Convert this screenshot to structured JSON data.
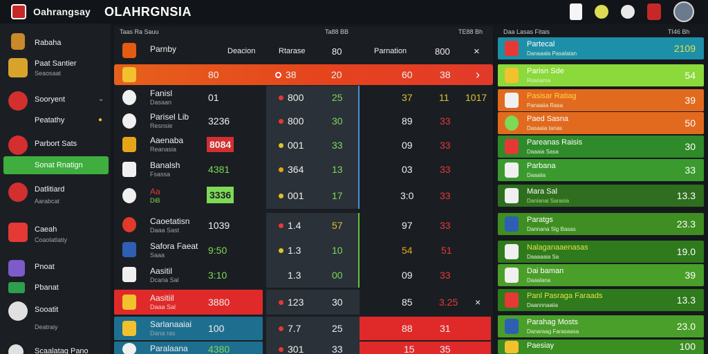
{
  "topbar": {
    "brand_name": "Oahrangsay",
    "app_title": "OLAHRGNSIA"
  },
  "sidebar": {
    "items": [
      {
        "label": "Rabaha",
        "sub": ""
      },
      {
        "label": "Paat Santier",
        "sub": "Seaosaat"
      },
      {
        "label": "Sooryent",
        "sub": ""
      },
      {
        "label": "Peatathy",
        "sub": ""
      },
      {
        "label": "Parbort Sats",
        "sub": ""
      },
      {
        "label": "Sonat Rnatign",
        "sub": ""
      },
      {
        "label": "Datlitiard",
        "sub": "Aarabcat"
      },
      {
        "label": "Caeah",
        "sub": "Coaolatlatiy"
      },
      {
        "label": "Pnoat",
        "sub": ""
      },
      {
        "label": "Pbanat",
        "sub": ""
      },
      {
        "label": "Sooatit",
        "sub": "Deatraiy"
      },
      {
        "label": "Scaalatag Pano",
        "sub": ""
      }
    ]
  },
  "main": {
    "headers": {
      "h1": "Taas Ra Sauu",
      "h2": "Ta88 BB",
      "h3": "TE88 Bh"
    },
    "subheaders": {
      "team": "Parnby",
      "c1": "Deacion",
      "c2": "Rtarase",
      "c3": "80",
      "c4": "Parnation",
      "c5": "800",
      "close": "×"
    },
    "rows": [
      {
        "name": "",
        "sub": "",
        "v1": "80",
        "v2": "38",
        "v3": "20",
        "v4": "60",
        "v5": "38",
        "v6": "›"
      },
      {
        "name": "Fanisl",
        "sub": "Dasaan",
        "v1": "01",
        "v2": "800",
        "v3": "25",
        "v4": "37",
        "v5": "11",
        "v6": "1017"
      },
      {
        "name": "Parisel Lib",
        "sub": "Resnsie",
        "v1": "3236",
        "v2": "800",
        "v3": "30",
        "v4": "89",
        "v5": "33",
        "v6": ""
      },
      {
        "name": "Aaenaba",
        "sub": "Reanasia",
        "v1": "8084",
        "v2": "001",
        "v3": "33",
        "v4": "09",
        "v5": "33",
        "v6": ""
      },
      {
        "name": "Banalsh",
        "sub": "Fsassa",
        "v1": "4381",
        "v2": "364",
        "v3": "13",
        "v4": "03",
        "v5": "33",
        "v6": ""
      },
      {
        "name": "Aa",
        "sub": "DiB",
        "v1": "3336",
        "v2": "001",
        "v3": "17",
        "v4": "3:0",
        "v5": "33",
        "v6": ""
      },
      {
        "name": "Caoetatisn",
        "sub": "Daaa Sast",
        "v1": "1039",
        "v2": "1.4",
        "v3": "57",
        "v4": "97",
        "v5": "33",
        "v6": ""
      },
      {
        "name": "Safora Faeat",
        "sub": "Saaa",
        "v1": "9:50",
        "v2": "1.3",
        "v3": "10",
        "v4": "54",
        "v5": "51",
        "v6": ""
      },
      {
        "name": "Aasitil",
        "sub": "Dcaria Sal",
        "v1": "3:10",
        "v2": "1.3",
        "v3": "00",
        "v4": "09",
        "v5": "33",
        "v6": ""
      },
      {
        "name": "Aasitiil",
        "sub": "Daaa Sal",
        "v1": "3880",
        "v2": "123",
        "v3": "30",
        "v4": "85",
        "v5": "3.25",
        "v6": "×"
      },
      {
        "name": "Sarlanaaiai",
        "sub": "Dana ras",
        "v1": "100",
        "v2": "7.7",
        "v3": "25",
        "v4": "88",
        "v5": "31",
        "v6": ""
      },
      {
        "name": "Paralaana",
        "sub": "",
        "v1": "4380",
        "v2": "301",
        "v3": "33",
        "v4": "15",
        "v5": "35",
        "v6": ""
      }
    ]
  },
  "right": {
    "headers": {
      "h1": "Daa Lasas Fitais",
      "h2": "TI46 Bh"
    },
    "cards": [
      {
        "name": "Partecal",
        "sub": "Danaaala Pasalatan",
        "value": "2109"
      },
      {
        "name": "Parisn Sde",
        "sub": "Rsanama",
        "value": "54"
      },
      {
        "name": "Pasisar Ratiag",
        "sub": "Panaaiia Rasa",
        "value": "39"
      },
      {
        "name": "Paed Sasna",
        "sub": "Dasaaia tanas",
        "value": "50"
      },
      {
        "name": "Pareanas Raisis",
        "sub": "Daaaia Sasa",
        "value": "30"
      },
      {
        "name": "Parbana",
        "sub": "Daaaiia",
        "value": "33"
      },
      {
        "name": "Mara Sal",
        "sub": "Danianai Sarasia",
        "value": "13.3"
      },
      {
        "name": "Paratgs",
        "sub": "Dannana Sig Basas",
        "value": "23.3"
      },
      {
        "name": "Nalaganaaenasas",
        "sub": "Daaaaaia Sa",
        "value": "19.0"
      },
      {
        "name": "Dai baman",
        "sub": "Daaalana",
        "value": "39"
      },
      {
        "name": "Panl Pasraga Faraads",
        "sub": "Daannnaaiia",
        "value": "13.3"
      },
      {
        "name": "Parahag Mosts",
        "sub": "Danaraag Farasaasa",
        "value": "23.0"
      },
      {
        "name": "Paesiay",
        "sub": "",
        "value": "100"
      }
    ]
  }
}
